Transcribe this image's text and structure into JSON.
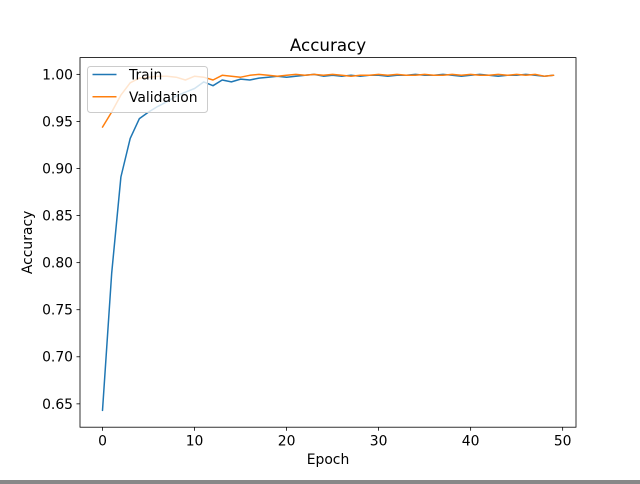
{
  "figure": {
    "background": "#ffffff"
  },
  "legend": {
    "position": "upper left",
    "entries": [
      {
        "label": "Train",
        "color": "#1f77b4"
      },
      {
        "label": "Validation",
        "color": "#ff7f0e"
      }
    ]
  },
  "chart_data": {
    "type": "line",
    "title": "Accuracy",
    "xlabel": "Epoch",
    "ylabel": "Accuracy",
    "grid": false,
    "legend_position": "upper left",
    "xlim": [
      -2.45,
      51.45
    ],
    "ylim": [
      0.6252,
      1.0178
    ],
    "x_ticks": [
      0,
      10,
      20,
      30,
      40,
      50
    ],
    "x_tick_labels": [
      "0",
      "10",
      "20",
      "30",
      "40",
      "50"
    ],
    "y_ticks": [
      0.65,
      0.7,
      0.75,
      0.8,
      0.85,
      0.9,
      0.95,
      1.0
    ],
    "y_tick_labels": [
      "0.65",
      "0.70",
      "0.75",
      "0.80",
      "0.85",
      "0.90",
      "0.95",
      "1.00"
    ],
    "x": [
      0,
      1,
      2,
      3,
      4,
      5,
      6,
      7,
      8,
      9,
      10,
      11,
      12,
      13,
      14,
      15,
      16,
      17,
      18,
      19,
      20,
      21,
      22,
      23,
      24,
      25,
      26,
      27,
      28,
      29,
      30,
      31,
      32,
      33,
      34,
      35,
      36,
      37,
      38,
      39,
      40,
      41,
      42,
      43,
      44,
      45,
      46,
      47,
      48,
      49
    ],
    "series": [
      {
        "name": "Train",
        "color": "#1f77b4",
        "values": [
          0.643,
          0.789,
          0.891,
          0.932,
          0.953,
          0.96,
          0.966,
          0.971,
          0.977,
          0.981,
          0.985,
          0.992,
          0.988,
          0.994,
          0.992,
          0.995,
          0.994,
          0.996,
          0.997,
          0.998,
          0.997,
          0.998,
          0.999,
          1.0,
          0.998,
          0.999,
          0.998,
          0.999,
          0.998,
          0.999,
          0.999,
          0.998,
          0.999,
          0.999,
          1.0,
          0.999,
          0.999,
          1.0,
          0.999,
          0.998,
          0.999,
          1.0,
          0.999,
          0.998,
          0.999,
          0.999,
          1.0,
          0.999,
          0.998,
          0.999
        ]
      },
      {
        "name": "Validation",
        "color": "#ff7f0e",
        "values": [
          0.944,
          0.96,
          0.978,
          0.991,
          0.996,
          0.997,
          0.998,
          0.998,
          0.997,
          0.994,
          0.998,
          0.997,
          0.994,
          0.999,
          0.998,
          0.997,
          0.999,
          1.0,
          0.999,
          0.998,
          0.999,
          1.0,
          0.999,
          1.0,
          0.999,
          1.0,
          0.999,
          0.998,
          0.999,
          0.999,
          1.0,
          0.999,
          1.0,
          0.999,
          0.999,
          1.0,
          0.999,
          0.999,
          1.0,
          0.999,
          1.0,
          0.999,
          0.999,
          1.0,
          0.999,
          1.0,
          0.999,
          1.0,
          0.998,
          0.999
        ]
      }
    ]
  }
}
